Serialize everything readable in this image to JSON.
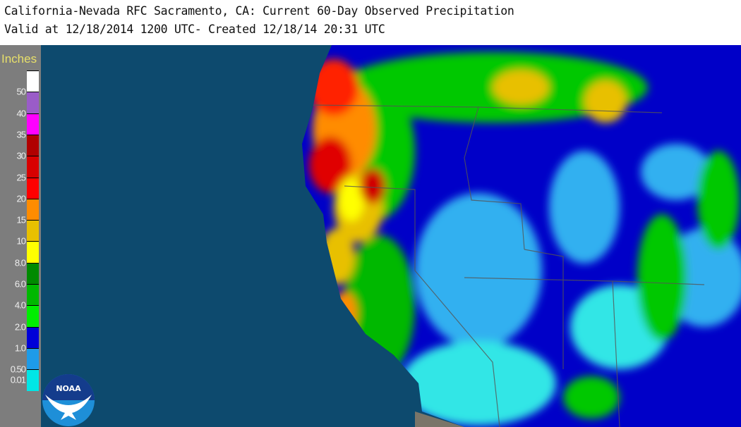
{
  "header": {
    "title": "California-Nevada RFC Sacramento, CA: Current 60-Day Observed Precipitation",
    "subtitle": "Valid at 12/18/2014 1200 UTC- Created 12/18/14 20:31 UTC"
  },
  "legend": {
    "units": "Inches",
    "bins": [
      {
        "color": "#ffffff"
      },
      {
        "color": "#9a5cc8"
      },
      {
        "color": "#ff00ff"
      },
      {
        "color": "#b00000"
      },
      {
        "color": "#d80000"
      },
      {
        "color": "#ff0000"
      },
      {
        "color": "#ff8c00"
      },
      {
        "color": "#e8c000"
      },
      {
        "color": "#ffff00"
      },
      {
        "color": "#008a00"
      },
      {
        "color": "#00b800"
      },
      {
        "color": "#00ee00"
      },
      {
        "color": "#0000d8"
      },
      {
        "color": "#1e9be8"
      },
      {
        "color": "#00e6e6"
      }
    ],
    "labels": [
      "50",
      "40",
      "35",
      "30",
      "25",
      "20",
      "15",
      "10",
      "8.0",
      "6.0",
      "4.0",
      "2.0",
      "1.0",
      "0.50",
      "0.01"
    ]
  },
  "map": {
    "ocean_color": "#0d4a6e",
    "land_base_color": "#0000c8"
  },
  "logo": {
    "text": "NOAA"
  }
}
